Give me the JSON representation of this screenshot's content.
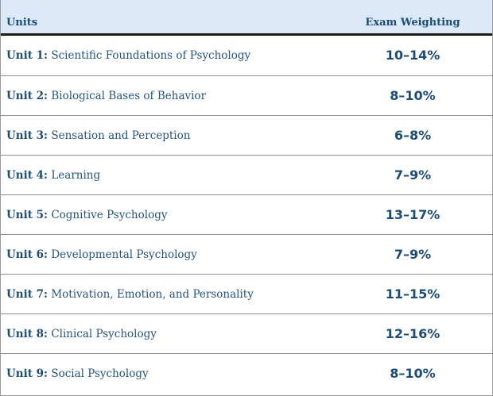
{
  "header": {
    "units_label": "Units",
    "weighting_label": "Exam Weighting"
  },
  "rows": [
    {
      "unit": "Unit 1:",
      "title": "Scientific Foundations of Psychology",
      "weighting": "10–14%"
    },
    {
      "unit": "Unit 2:",
      "title": "Biological Bases of Behavior",
      "weighting": "8–10%"
    },
    {
      "unit": "Unit 3:",
      "title": "Sensation and Perception",
      "weighting": "6–8%"
    },
    {
      "unit": "Unit 4:",
      "title": "Learning",
      "weighting": "7–9%"
    },
    {
      "unit": "Unit 5:",
      "title": "Cognitive Psychology",
      "weighting": "13–17%"
    },
    {
      "unit": "Unit 6:",
      "title": "Developmental Psychology",
      "weighting": "7–9%"
    },
    {
      "unit": "Unit 7:",
      "title": "Motivation, Emotion, and Personality",
      "weighting": "11–15%"
    },
    {
      "unit": "Unit 8:",
      "title": "Clinical Psychology",
      "weighting": "12–16%"
    },
    {
      "unit": "Unit 9:",
      "title": "Social Psychology",
      "weighting": "8–10%"
    }
  ],
  "colors": {
    "header_bg": "#dce9f8",
    "text_blue": "#1c4d78",
    "rule": "#8f8f8f"
  }
}
